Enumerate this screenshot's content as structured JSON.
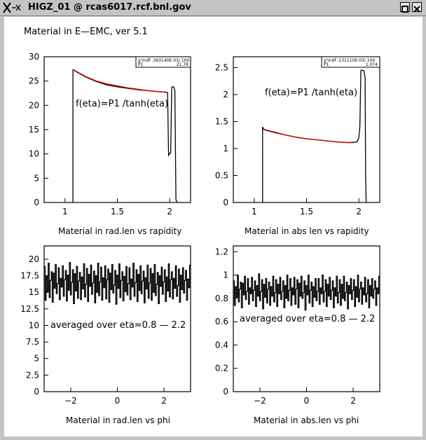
{
  "window": {
    "title": "HIGZ_01 @ rcas6017.rcf.bnl.gov",
    "background": "#ffffff"
  },
  "page_title": "Material in E—EMC, ver 5.1",
  "chart_data": [
    {
      "type": "line",
      "xlabel": "Material in rad.len vs rapidity",
      "xlim": [
        0.8,
        2.2
      ],
      "ylim": [
        0,
        30
      ],
      "xticks": [
        1,
        1.5,
        2
      ],
      "xtick_labels": [
        "1",
        "1.5",
        "2"
      ],
      "yticks": [
        0,
        5,
        10,
        15,
        20,
        25,
        30
      ],
      "ytick_labels": [
        "0",
        "5",
        "10",
        "15",
        "20",
        "25",
        "30"
      ],
      "annotation": "f(eta)=P1 /tanh(eta)",
      "stat_box": {
        "line1": "χ²/ndf  .363140E-03/  100",
        "line2_label": "P1",
        "line2_value": "21.78"
      },
      "series": [
        {
          "color": "#000000",
          "x": [
            1.075,
            1.075,
            1.08,
            1.1,
            1.2,
            1.3,
            1.4,
            1.5,
            1.6,
            1.7,
            1.8,
            1.9,
            1.97,
            1.98,
            1.99,
            2.0,
            2.01,
            2.02,
            2.04,
            2.05,
            2.06,
            2.07
          ],
          "y": [
            0,
            27.3,
            27.3,
            27.0,
            25.8,
            24.9,
            24.2,
            23.8,
            23.5,
            23.2,
            23.0,
            22.8,
            22.7,
            22.6,
            9.7,
            10.1,
            10.2,
            23.8,
            23.8,
            23.0,
            0.6,
            0
          ]
        },
        {
          "color": "#cc0000",
          "x": [
            1.08,
            1.2,
            1.3,
            1.4,
            1.5,
            1.6,
            1.7,
            1.8,
            1.9,
            1.95
          ],
          "y": [
            27.3,
            25.9,
            25.0,
            24.4,
            24.0,
            23.6,
            23.3,
            23.0,
            22.8,
            22.7
          ]
        }
      ]
    },
    {
      "type": "line",
      "xlabel": "Material in abs len vs rapidity",
      "xlim": [
        0.8,
        2.2
      ],
      "ylim": [
        0,
        2.7
      ],
      "xticks": [
        1,
        1.5,
        2
      ],
      "xtick_labels": [
        "1",
        "1.5",
        "2"
      ],
      "yticks": [
        0,
        0.5,
        1,
        1.5,
        2,
        2.5
      ],
      "ytick_labels": [
        "0",
        "0.5",
        "1",
        "1.5",
        "2",
        "2.5"
      ],
      "annotation": "f(eta)=P1 /tanh(eta)",
      "stat_box": {
        "line1": "χ²/ndf  .131110E-03/  100",
        "line2_label": "P1",
        "line2_value": "1.074"
      },
      "series": [
        {
          "color": "#000000",
          "x": [
            1.08,
            1.08,
            1.09,
            1.1,
            1.2,
            1.3,
            1.4,
            1.5,
            1.6,
            1.7,
            1.8,
            1.9,
            1.98,
            1.99,
            2.0,
            2.01,
            2.02,
            2.03,
            2.05,
            2.06,
            2.065,
            2.07
          ],
          "y": [
            0,
            1.4,
            1.36,
            1.35,
            1.3,
            1.25,
            1.21,
            1.18,
            1.16,
            1.14,
            1.12,
            1.11,
            1.12,
            1.15,
            1.2,
            1.4,
            2.45,
            2.45,
            2.44,
            2.3,
            0.5,
            0
          ]
        },
        {
          "color": "#cc0000",
          "x": [
            1.09,
            1.2,
            1.3,
            1.4,
            1.5,
            1.6,
            1.7,
            1.8,
            1.9,
            1.95
          ],
          "y": [
            1.35,
            1.29,
            1.25,
            1.21,
            1.18,
            1.16,
            1.14,
            1.12,
            1.11,
            1.11
          ]
        }
      ]
    },
    {
      "type": "line",
      "xlabel": "Material in rad.len vs phi",
      "xlim": [
        -3.14,
        3.14
      ],
      "ylim": [
        0,
        22
      ],
      "xticks": [
        -2,
        0,
        2
      ],
      "xtick_labels": [
        "−2",
        "0",
        "2"
      ],
      "yticks": [
        0,
        2.5,
        5,
        7.5,
        10,
        12.5,
        15,
        17.5,
        20
      ],
      "ytick_labels": [
        "0",
        "2.5",
        "5",
        "7.5",
        "10",
        "12.5",
        "15",
        "17.5",
        "20"
      ],
      "annotation": "averaged over eta=0.8 — 2.2",
      "series": [
        {
          "color": "#000000",
          "x_start": -3.14,
          "x_end": 3.14,
          "y": [
            18.9,
            13.8,
            17.4,
            15.1,
            19.4,
            14.2,
            16.8,
            18.1,
            13.5,
            17.9,
            15.6,
            19.2,
            14.8,
            16.3,
            18.7,
            13.9,
            17.1,
            15.8,
            19.0,
            14.4,
            16.9,
            18.3,
            13.7,
            17.6,
            15.3,
            19.5,
            14.6,
            16.5,
            18.4,
            13.3,
            17.8,
            15.2,
            18.9,
            14.1,
            16.7,
            18.0,
            13.9,
            17.3,
            15.5,
            19.3,
            14.3,
            16.2,
            18.6,
            13.6,
            17.7,
            15.9,
            19.1,
            14.7,
            16.4,
            18.2,
            13.4,
            17.5,
            15.0,
            19.4,
            14.5,
            16.6,
            18.8,
            13.8,
            17.2,
            15.7,
            19.0,
            14.0,
            16.9,
            18.5,
            13.5,
            17.9,
            15.4,
            19.2,
            14.9,
            16.1,
            18.3,
            13.2,
            17.6,
            15.6,
            19.3,
            14.2,
            16.8,
            18.1,
            13.7,
            17.4,
            15.1,
            18.9,
            14.6,
            16.3,
            18.7,
            13.9,
            17.0,
            15.8,
            19.4,
            14.4,
            16.5,
            18.4,
            13.6,
            17.7,
            15.3,
            19.0,
            14.8,
            16.7,
            18.2,
            13.4,
            17.2,
            15.5,
            19.1,
            14.1,
            16.4,
            18.6,
            13.8,
            17.8,
            15.0,
            19.2,
            14.5,
            16.2,
            18.0,
            13.3,
            17.5,
            15.9,
            18.8,
            14.7,
            16.6,
            18.4,
            13.6,
            17.3,
            15.2,
            19.3,
            14.3,
            16.9,
            18.1,
            14.0,
            17.1,
            15.6,
            19.0,
            14.4,
            16.0,
            18.5,
            13.5,
            17.6,
            15.4,
            18.7,
            14.9,
            16.8,
            18.3,
            13.8,
            17.0,
            15.7,
            19.1
          ]
        }
      ]
    },
    {
      "type": "line",
      "xlabel": "Material in abs.len vs phi",
      "xlim": [
        -3.14,
        3.14
      ],
      "ylim": [
        0,
        1.25
      ],
      "xticks": [
        -2,
        0,
        2
      ],
      "xtick_labels": [
        "−2",
        "0",
        "2"
      ],
      "yticks": [
        0,
        0.2,
        0.4,
        0.6,
        0.8,
        1,
        1.2
      ],
      "ytick_labels": [
        "0",
        "0.2",
        "0.4",
        "0.6",
        "0.8",
        "1",
        "1.2"
      ],
      "annotation": "averaged over eta=0.8 — 2.2",
      "series": [
        {
          "color": "#000000",
          "x_start": -3.14,
          "x_end": 3.14,
          "y": [
            0.95,
            0.74,
            0.9,
            0.81,
            1.0,
            0.77,
            0.88,
            0.94,
            0.72,
            0.93,
            0.83,
            0.99,
            0.79,
            0.86,
            0.97,
            0.75,
            0.89,
            0.84,
            0.98,
            0.78,
            0.87,
            0.95,
            0.73,
            0.91,
            0.82,
            1.01,
            0.78,
            0.86,
            0.96,
            0.71,
            0.92,
            0.81,
            0.97,
            0.76,
            0.88,
            0.94,
            0.74,
            0.9,
            0.82,
            0.99,
            0.77,
            0.85,
            0.96,
            0.73,
            0.92,
            0.84,
            0.98,
            0.79,
            0.86,
            0.95,
            0.72,
            0.91,
            0.8,
            1.0,
            0.78,
            0.87,
            0.97,
            0.74,
            0.89,
            0.83,
            0.98,
            0.75,
            0.88,
            0.96,
            0.72,
            0.93,
            0.82,
            0.99,
            0.8,
            0.85,
            0.95,
            0.7,
            0.91,
            0.83,
            1.0,
            0.76,
            0.87,
            0.94,
            0.73,
            0.9,
            0.81,
            0.97,
            0.78,
            0.86,
            0.97,
            0.75,
            0.89,
            0.84,
            1.0,
            0.77,
            0.86,
            0.96,
            0.73,
            0.92,
            0.82,
            0.98,
            0.79,
            0.87,
            0.95,
            0.72,
            0.89,
            0.82,
            0.99,
            0.76,
            0.85,
            0.96,
            0.74,
            0.92,
            0.8,
            0.99,
            0.78,
            0.85,
            0.94,
            0.71,
            0.91,
            0.84,
            0.97,
            0.79,
            0.87,
            0.96,
            0.73,
            0.9,
            0.81,
            1.0,
            0.77,
            0.88,
            0.94,
            0.75,
            0.89,
            0.83,
            0.98,
            0.77,
            0.84,
            0.96,
            0.72,
            0.91,
            0.82,
            0.97,
            0.8,
            0.88,
            0.95,
            0.74,
            0.89,
            0.84,
            0.99
          ]
        }
      ]
    }
  ]
}
